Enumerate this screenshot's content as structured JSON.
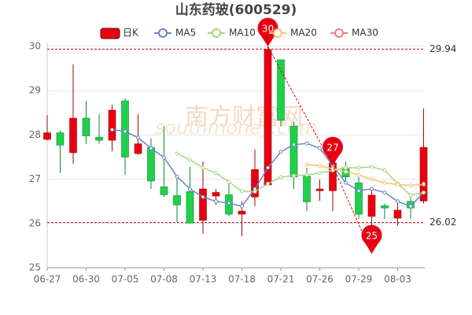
{
  "chart_data": {
    "type": "candlestick",
    "title": "山东药玻(600529)",
    "watermark": [
      "南方财富网",
      "southmoney.com"
    ],
    "categories": [
      "06-27",
      null,
      null,
      "06-30",
      null,
      null,
      "07-05",
      null,
      null,
      "07-08",
      null,
      null,
      "07-13",
      null,
      null,
      "07-18",
      null,
      null,
      "07-21",
      null,
      null,
      "07-26",
      null,
      null,
      "07-29",
      null,
      null,
      "08-03",
      null,
      null
    ],
    "candle_name": "日K",
    "up_color": "#e60012",
    "down_color": "#1fd14a",
    "open": [
      27.9,
      28.05,
      27.6,
      28.38,
      27.95,
      27.88,
      28.77,
      27.58,
      27.72,
      26.83,
      26.63,
      26.72,
      26.07,
      26.62,
      26.65,
      26.21,
      26.6,
      26.87,
      29.7,
      28.2,
      27.07,
      26.74,
      26.74,
      27.26,
      26.92,
      26.16,
      26.4,
      26.12,
      26.5,
      26.51
    ],
    "high": [
      28.45,
      28.1,
      29.6,
      28.77,
      28.47,
      28.68,
      28.83,
      28.47,
      27.92,
      28.2,
      27.05,
      27.28,
      27.4,
      26.78,
      26.92,
      26.5,
      27.67,
      30.0,
      29.7,
      28.3,
      27.26,
      26.99,
      27.81,
      27.4,
      27.05,
      26.78,
      26.45,
      26.5,
      26.6,
      28.6
    ],
    "low": [
      27.88,
      27.14,
      27.35,
      27.8,
      27.8,
      27.63,
      27.1,
      27.55,
      26.78,
      26.6,
      26.03,
      26.0,
      25.77,
      26.42,
      26.16,
      25.71,
      26.39,
      26.87,
      28.2,
      26.78,
      26.28,
      26.51,
      26.28,
      26.96,
      26.1,
      25.32,
      26.1,
      25.95,
      26.1,
      26.45
    ],
    "close": [
      28.05,
      27.77,
      28.38,
      27.98,
      27.88,
      28.56,
      27.5,
      27.8,
      26.96,
      26.65,
      26.42,
      26.01,
      26.78,
      26.7,
      26.21,
      26.28,
      27.22,
      29.93,
      28.33,
      27.05,
      26.49,
      26.78,
      27.37,
      27.05,
      26.21,
      26.64,
      26.35,
      26.3,
      26.35,
      27.72
    ],
    "series": [
      {
        "name": "MA5",
        "color": "#6a86c8",
        "values": [
          null,
          null,
          null,
          null,
          null,
          28.12,
          28.08,
          27.94,
          27.7,
          27.49,
          27.06,
          26.78,
          26.6,
          26.5,
          26.46,
          26.39,
          26.78,
          27.26,
          27.62,
          27.78,
          27.81,
          27.7,
          27.31,
          26.92,
          26.74,
          26.78,
          26.7,
          26.5,
          26.39,
          26.7
        ]
      },
      {
        "name": "MA10",
        "color": "#a6d87c",
        "values": [
          null,
          null,
          null,
          null,
          null,
          null,
          null,
          null,
          null,
          null,
          27.58,
          27.44,
          27.26,
          27.14,
          26.94,
          26.73,
          26.72,
          26.9,
          27.05,
          27.08,
          27.1,
          27.14,
          27.2,
          27.26,
          27.26,
          27.28,
          27.2,
          26.9,
          26.64,
          26.7
        ]
      },
      {
        "name": "MA20",
        "color": "#f5c26b",
        "values": [
          null,
          null,
          null,
          null,
          null,
          null,
          null,
          null,
          null,
          null,
          null,
          null,
          null,
          null,
          null,
          null,
          null,
          null,
          null,
          null,
          27.33,
          27.3,
          27.24,
          27.17,
          27.1,
          27.0,
          26.92,
          26.88,
          26.86,
          26.88
        ]
      },
      {
        "name": "MA30",
        "color": "#f08080",
        "values": [
          null,
          null,
          null,
          null,
          null,
          null,
          null,
          null,
          null,
          null,
          null,
          null,
          null,
          null,
          null,
          null,
          null,
          null,
          null,
          null,
          null,
          null,
          null,
          null,
          null,
          null,
          null,
          null,
          null,
          26.9
        ]
      }
    ],
    "ylim": [
      25,
      30
    ],
    "yticks": [
      25,
      26,
      27,
      28,
      29,
      30
    ],
    "grid": true,
    "reference_lines": [
      {
        "value": 29.94,
        "label": "29.94"
      },
      {
        "value": 26.02,
        "label": "26.02"
      }
    ],
    "annotations": [
      {
        "text": "30",
        "index": 17,
        "value": 30.0
      },
      {
        "text": "27",
        "index": 22,
        "value": 27.31
      },
      {
        "text": "25",
        "index": 25,
        "value": 25.32
      }
    ]
  }
}
